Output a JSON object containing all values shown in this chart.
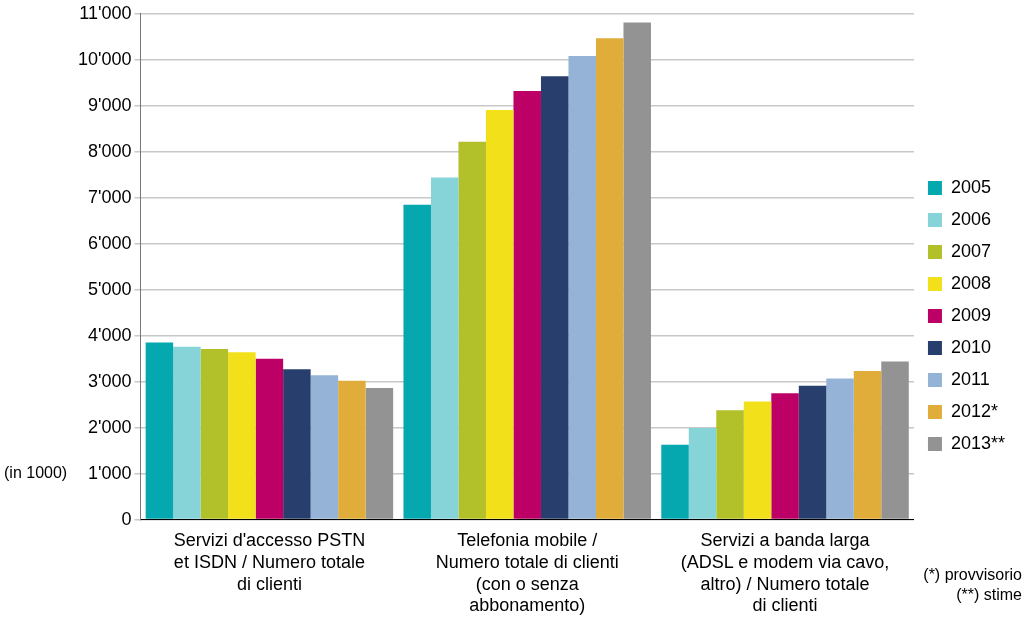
{
  "chart_data": {
    "type": "bar",
    "ylabel": "(in 1000)",
    "categories": [
      "Servizi d'accesso PSTN et ISDN / Numero totale di clienti",
      "Telefonia mobile / Numero totale di clienti (con o senza abbonamento)",
      "Servizi a banda larga (ADSL e modem via cavo, altro) / Numero totale di clienti"
    ],
    "series": [
      {
        "name": "2005",
        "color": "#06a8b0",
        "values": [
          3850,
          6850,
          1630
        ]
      },
      {
        "name": "2006",
        "color": "#86d3d8",
        "values": [
          3760,
          7440,
          1990
        ]
      },
      {
        "name": "2007",
        "color": "#b2c02a",
        "values": [
          3710,
          8220,
          2380
        ]
      },
      {
        "name": "2008",
        "color": "#f2e11a",
        "values": [
          3640,
          8910,
          2570
        ]
      },
      {
        "name": "2009",
        "color": "#bd0066",
        "values": [
          3500,
          9320,
          2750
        ]
      },
      {
        "name": "2010",
        "color": "#283f6d",
        "values": [
          3270,
          9640,
          2910
        ]
      },
      {
        "name": "2011",
        "color": "#95b3d7",
        "values": [
          3140,
          10080,
          3070
        ]
      },
      {
        "name": "2012*",
        "color": "#e0ad3a",
        "values": [
          3020,
          10470,
          3230
        ]
      },
      {
        "name": "2013**",
        "color": "#939393",
        "values": [
          2860,
          10810,
          3440
        ]
      }
    ],
    "ylim": [
      0,
      11000
    ],
    "yticks": [
      0,
      {
        "value": 1000,
        "label": "1'000"
      },
      {
        "value": 2000,
        "label": "2'000"
      },
      {
        "value": 3000,
        "label": "3'000"
      },
      {
        "value": 4000,
        "label": "4'000"
      },
      {
        "value": 5000,
        "label": "5'000"
      },
      {
        "value": 6000,
        "label": "6'000"
      },
      {
        "value": 7000,
        "label": "7'000"
      },
      {
        "value": 8000,
        "label": "8'000"
      },
      {
        "value": 9000,
        "label": "9'000"
      },
      {
        "value": 10000,
        "label": "10'000"
      },
      {
        "value": 11000,
        "label": "11'000"
      }
    ],
    "grid": "y",
    "legend": "right",
    "annotations": [
      "(*) provvisorio",
      "(**) stime"
    ]
  }
}
